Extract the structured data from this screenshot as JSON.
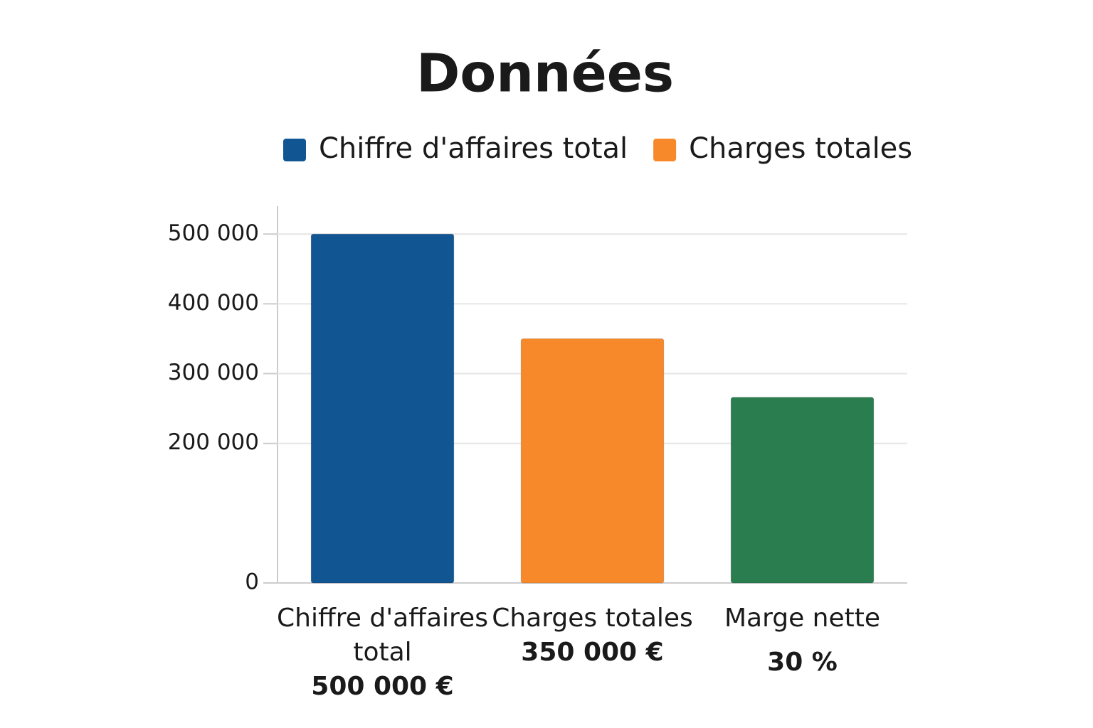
{
  "chart_data": {
    "type": "bar",
    "title": "Données",
    "legend": [
      {
        "name": "Chiffre d'affaires total",
        "color": "#115592"
      },
      {
        "name": "Charges totales",
        "color": "#f7892a"
      }
    ],
    "categories": [
      "Chiffre d'affaires total",
      "Charges totales",
      "Marge nette"
    ],
    "values": [
      500000,
      350000,
      266000
    ],
    "value_labels": [
      "500 000 €",
      "350 000 €",
      null
    ],
    "annotation": "30 %",
    "colors": [
      "#115592",
      "#f7892a",
      "#2a7d4f"
    ],
    "ylim": [
      0,
      540000
    ],
    "yticks": [
      0,
      {
        "value": 200000,
        "label": "200 000"
      },
      {
        "value": 300000,
        "label": "300 000"
      },
      {
        "value": 400000,
        "label": "400 000"
      },
      {
        "value": 500000,
        "label": "500 000"
      }
    ],
    "grid": true
  }
}
